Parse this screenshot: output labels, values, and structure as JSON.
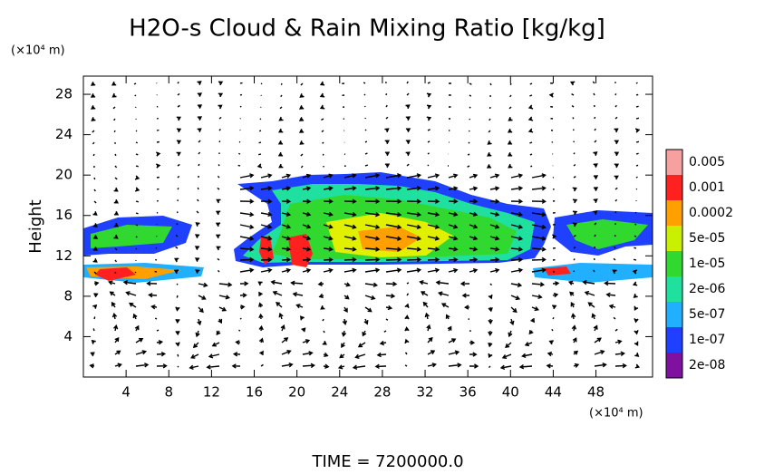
{
  "chart_data": {
    "type": "contour",
    "title": "H2O-s Cloud & Rain Mixing Ratio [kg/kg]",
    "y_unit": "(×10⁴ m)",
    "ylabel": "Height",
    "x_unit": "(×10⁴ m)",
    "footer": "TIME = 7200000.0",
    "xlim": [
      0,
      53.3
    ],
    "ylim": [
      0,
      29.8
    ],
    "xticks": [
      4,
      8,
      12,
      16,
      20,
      24,
      28,
      32,
      36,
      40,
      44,
      48
    ],
    "yticks": [
      4,
      8,
      12,
      16,
      20,
      24,
      28
    ],
    "colorbar": {
      "labels": [
        "0.005",
        "0.001",
        "0.0002",
        "5e-05",
        "1e-05",
        "2e-06",
        "5e-07",
        "1e-07",
        "2e-08"
      ],
      "colors": [
        "#f7a0a0",
        "#ff2020",
        "#ffa000",
        "#c8f000",
        "#30d830",
        "#20e0a0",
        "#20b0ff",
        "#2040ff",
        "#8010a0"
      ]
    }
  }
}
